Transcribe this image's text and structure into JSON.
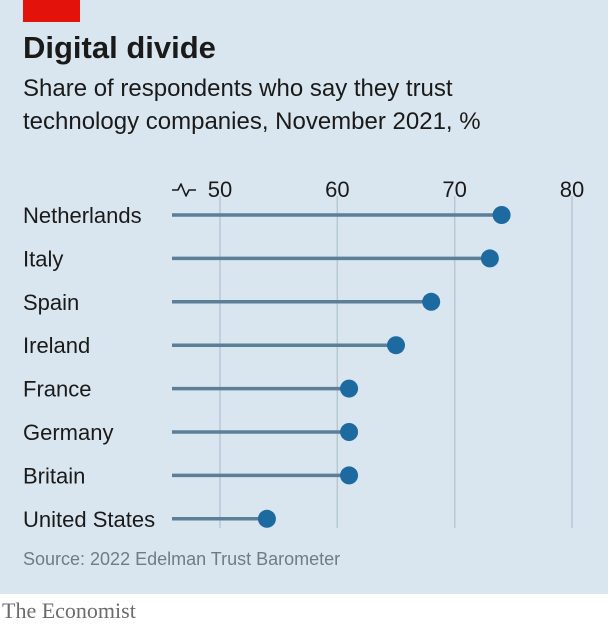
{
  "colors": {
    "background": "#d9e6ef",
    "accent_red": "#e3120b",
    "stem": "#5b7f98",
    "dot": "#1c6aa0",
    "grid": "#b8c7d2"
  },
  "header": {
    "title": "Digital divide",
    "subtitle_lines": [
      "Share of respondents who say they trust",
      "technology companies, November 2021, %"
    ]
  },
  "source": "Source: 2022 Edelman Trust Barometer",
  "footer": {
    "brand": "The Economist"
  },
  "chart_data": {
    "type": "dot",
    "title": "Digital divide",
    "subtitle": "Share of respondents who say they trust technology companies, November 2021, %",
    "axis_break_icon": "axis-break-icon",
    "xlim": [
      46,
      80
    ],
    "x_ticks": [
      50,
      60,
      70,
      80
    ],
    "grid": true,
    "categories": [
      "Netherlands",
      "Italy",
      "Spain",
      "Ireland",
      "France",
      "Germany",
      "Britain",
      "United States"
    ],
    "values": [
      74,
      73,
      68,
      65,
      61,
      61,
      61,
      54
    ]
  }
}
